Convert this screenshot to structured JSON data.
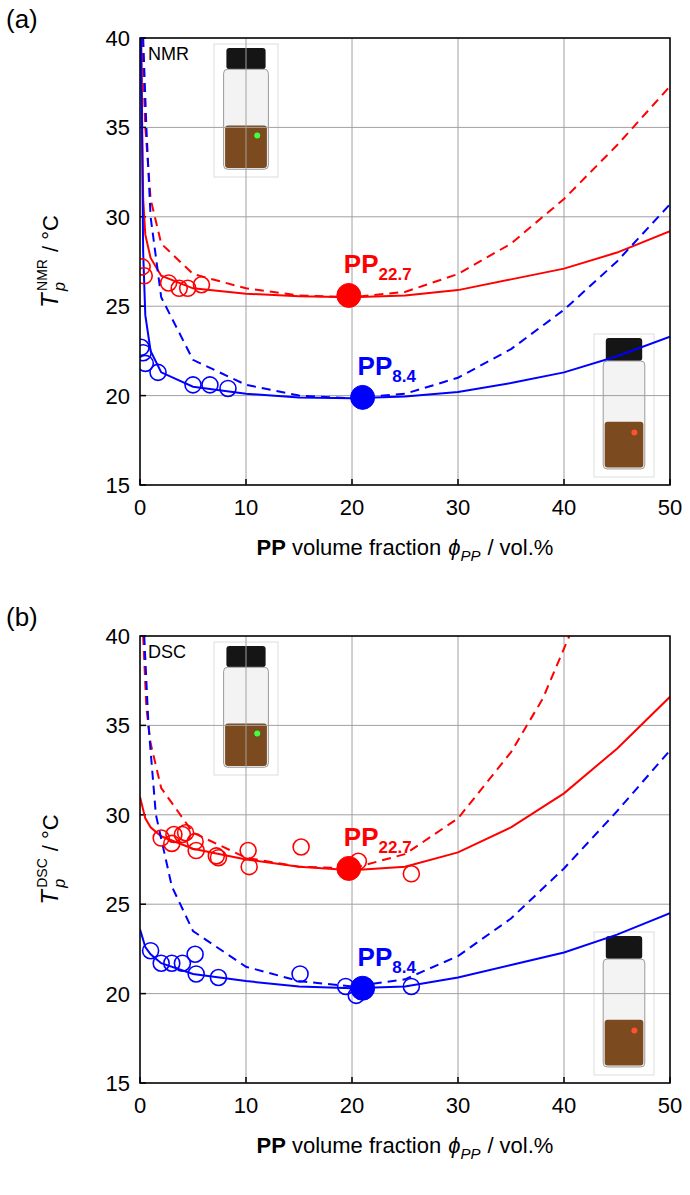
{
  "chart_data": [
    {
      "type": "scatter",
      "panel": "(a)",
      "annotation": "NMR",
      "x_label": {
        "bold": "PP",
        "text": "volume fraction",
        "symbol": "ϕ",
        "sub": "PP",
        "unit": "/ vol.%"
      },
      "y_label": {
        "symbol": "T",
        "sub": "p",
        "sup": "NMR",
        "unit": "/ °C"
      },
      "xlim": [
        0,
        50
      ],
      "ylim": [
        15,
        40
      ],
      "xticks": [
        0,
        10,
        20,
        30,
        40,
        50
      ],
      "yticks": [
        15,
        20,
        25,
        30,
        35,
        40
      ],
      "grid": true,
      "series": [
        {
          "type": "scatter",
          "marker": "circle-open",
          "color": "#ff0000",
          "x": [
            0.2,
            0.4,
            2.7,
            3.7,
            4.5,
            5.8
          ],
          "values": [
            27.2,
            26.7,
            26.3,
            26.0,
            26.0,
            26.2
          ]
        },
        {
          "type": "line",
          "line_style": "solid",
          "color": "#ff0000",
          "x": [
            0.1,
            0.3,
            0.5,
            1,
            2,
            5,
            10,
            15,
            20,
            25,
            30,
            35,
            40,
            45,
            50
          ],
          "values": [
            40,
            31,
            29,
            27.7,
            26.7,
            26.0,
            25.7,
            25.55,
            25.5,
            25.6,
            25.9,
            26.5,
            27.1,
            28.0,
            29.2
          ]
        },
        {
          "type": "line",
          "line_style": "dashed",
          "color": "#ff0000",
          "x": [
            0.2,
            0.5,
            1,
            2,
            5,
            10,
            15,
            20,
            25,
            30,
            35,
            40,
            45,
            50
          ],
          "values": [
            40,
            35,
            31,
            28.5,
            26.8,
            26.0,
            25.6,
            25.5,
            25.8,
            26.8,
            28.5,
            31,
            34,
            37.3
          ]
        },
        {
          "name": "PP22.7",
          "type": "scatter",
          "marker": "circle-filled",
          "color": "#ff0000",
          "x": [
            19.7
          ],
          "values": [
            25.6
          ]
        },
        {
          "type": "scatter",
          "marker": "circle-open",
          "color": "#0000ff",
          "x": [
            0.1,
            0.3,
            0.5,
            1.7,
            5.0,
            6.6,
            8.3
          ],
          "values": [
            22.7,
            22.4,
            21.8,
            21.3,
            20.6,
            20.6,
            20.4
          ]
        },
        {
          "type": "line",
          "line_style": "solid",
          "color": "#0000ff",
          "x": [
            0.1,
            0.3,
            0.5,
            1,
            2,
            5,
            10,
            15,
            20,
            25,
            30,
            35,
            40,
            45,
            50
          ],
          "values": [
            40,
            28,
            24.5,
            22.5,
            21.3,
            20.5,
            20.1,
            19.9,
            19.85,
            19.95,
            20.2,
            20.7,
            21.3,
            22.2,
            23.3
          ]
        },
        {
          "type": "line",
          "line_style": "dashed",
          "color": "#0000ff",
          "x": [
            0.3,
            0.6,
            1,
            2,
            5,
            10,
            15,
            20,
            25,
            30,
            35,
            40,
            45,
            50
          ],
          "values": [
            40,
            35,
            30,
            25.5,
            22,
            20.6,
            20.0,
            19.85,
            20.1,
            21.0,
            22.6,
            24.8,
            27.5,
            30.7
          ]
        },
        {
          "name": "PP8.4",
          "type": "scatter",
          "marker": "circle-filled",
          "color": "#0000ff",
          "x": [
            21.0
          ],
          "values": [
            19.9
          ]
        }
      ]
    },
    {
      "type": "scatter",
      "panel": "(b)",
      "annotation": "DSC",
      "x_label": {
        "bold": "PP",
        "text": "volume fraction",
        "symbol": "ϕ",
        "sub": "PP",
        "unit": "/ vol.%"
      },
      "y_label": {
        "symbol": "T",
        "sub": "p",
        "sup": "DSC",
        "unit": "/ °C"
      },
      "xlim": [
        0,
        50
      ],
      "ylim": [
        15,
        40
      ],
      "xticks": [
        0,
        10,
        20,
        30,
        40,
        50
      ],
      "yticks": [
        15,
        20,
        25,
        30,
        35,
        40
      ],
      "grid": true,
      "series": [
        {
          "type": "scatter",
          "marker": "circle-open",
          "color": "#ff0000",
          "x": [
            2.0,
            3.0,
            3.2,
            4.0,
            4.3,
            5.2,
            5.3,
            7.2,
            7.4,
            10.2,
            10.3,
            15.2,
            20.6,
            25.6
          ],
          "values": [
            28.7,
            28.4,
            28.9,
            28.9,
            29.0,
            28.5,
            28.0,
            27.7,
            27.6,
            28.0,
            27.1,
            28.2,
            27.4,
            26.7
          ]
        },
        {
          "type": "line",
          "line_style": "solid",
          "color": "#ff0000",
          "x": [
            0,
            0.5,
            1,
            2,
            5,
            10,
            15,
            20,
            25,
            30,
            35,
            40,
            45,
            50
          ],
          "values": [
            31,
            29.8,
            29.3,
            28.8,
            28.1,
            27.5,
            27.1,
            26.9,
            27.1,
            27.9,
            29.3,
            31.2,
            33.7,
            36.6
          ]
        },
        {
          "type": "line",
          "line_style": "dashed",
          "color": "#ff0000",
          "x": [
            0.3,
            0.6,
            1,
            2,
            5,
            10,
            15,
            20,
            25,
            30,
            35,
            38,
            40.5
          ],
          "values": [
            40,
            36,
            34,
            31.5,
            29,
            27.6,
            27.1,
            27.0,
            27.8,
            29.8,
            33.5,
            36.5,
            40
          ]
        },
        {
          "name": "PP22.7",
          "type": "scatter",
          "marker": "circle-filled",
          "color": "#ff0000",
          "x": [
            19.7
          ],
          "values": [
            27.0
          ]
        },
        {
          "type": "scatter",
          "marker": "circle-open",
          "color": "#0000ff",
          "x": [
            1.0,
            2.0,
            3.0,
            4.0,
            5.2,
            5.3,
            7.4,
            15.1,
            19.4,
            20.4,
            25.6
          ],
          "values": [
            22.4,
            21.7,
            21.7,
            21.7,
            22.2,
            21.1,
            20.9,
            21.1,
            20.4,
            19.9,
            20.4
          ]
        },
        {
          "type": "line",
          "line_style": "solid",
          "color": "#0000ff",
          "x": [
            0,
            0.5,
            1,
            2,
            5,
            10,
            15,
            20,
            25,
            30,
            35,
            40,
            45,
            50
          ],
          "values": [
            23.6,
            22.6,
            22.2,
            21.7,
            21.1,
            20.7,
            20.4,
            20.3,
            20.4,
            20.9,
            21.6,
            22.3,
            23.3,
            24.5
          ]
        },
        {
          "type": "line",
          "line_style": "dashed",
          "color": "#0000ff",
          "x": [
            0.4,
            0.8,
            1.5,
            3,
            5,
            10,
            15,
            20,
            25,
            30,
            35,
            40,
            45,
            50
          ],
          "values": [
            40,
            35,
            30,
            26,
            23.5,
            21.5,
            20.7,
            20.4,
            20.8,
            22.1,
            24.2,
            27,
            30.2,
            33.6
          ]
        },
        {
          "name": "PP8.4",
          "type": "scatter",
          "marker": "circle-filled",
          "color": "#0000ff",
          "x": [
            21.0
          ],
          "values": [
            20.3
          ]
        }
      ]
    }
  ]
}
